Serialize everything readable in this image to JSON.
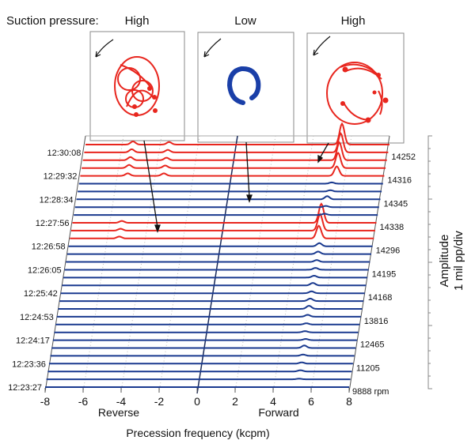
{
  "header": {
    "label": "Suction pressure:",
    "conditions": [
      "High",
      "Low",
      "High"
    ]
  },
  "colors": {
    "high": "#e8261e",
    "low": "#1a3a8f"
  },
  "chart_data": {
    "type": "waterfall",
    "xlabel": "Precession frequency (kcpm)",
    "x_region_labels": [
      "Reverse",
      "Forward"
    ],
    "ylabel": [
      "Amplitude",
      "1 mil pp/div"
    ],
    "xlim": [
      -8,
      8
    ],
    "xticks": [
      -8,
      -6,
      -4,
      -2,
      0,
      2,
      4,
      6,
      8
    ],
    "rpm_unit": "rpm",
    "rows": [
      {
        "time": "",
        "rpm": "",
        "c": "high",
        "peaks": [
          [
            -5.5,
            0.05
          ],
          [
            -3.6,
            0.04
          ],
          [
            5.5,
            0.33
          ]
        ]
      },
      {
        "time": "12:30:08",
        "rpm": "14252",
        "c": "high",
        "peaks": [
          [
            -5.5,
            0.05
          ],
          [
            -3.6,
            0.04
          ],
          [
            5.5,
            0.3
          ]
        ]
      },
      {
        "time": "",
        "rpm": "",
        "c": "high",
        "peaks": [
          [
            -5.5,
            0.05
          ],
          [
            -3.6,
            0.04
          ],
          [
            5.5,
            0.28
          ]
        ]
      },
      {
        "time": "",
        "rpm": "",
        "c": "high",
        "peaks": [
          [
            -5.5,
            0.05
          ],
          [
            -3.6,
            0.04
          ],
          [
            5.5,
            0.24
          ]
        ]
      },
      {
        "time": "12:29:32",
        "rpm": "14316",
        "c": "high",
        "peaks": [
          [
            -5.5,
            0.04
          ],
          [
            -3.6,
            0.04
          ],
          [
            5.5,
            0.15
          ]
        ]
      },
      {
        "time": "",
        "rpm": "",
        "c": "low",
        "peaks": [
          [
            5.3,
            0.02
          ]
        ]
      },
      {
        "time": "",
        "rpm": "",
        "c": "low",
        "peaks": [
          [
            5.3,
            0.02
          ]
        ]
      },
      {
        "time": "12:28:34",
        "rpm": "14345",
        "c": "low",
        "peaks": [
          [
            5.2,
            0.05
          ]
        ]
      },
      {
        "time": "",
        "rpm": "",
        "c": "low",
        "peaks": [
          [
            5.2,
            0.02
          ]
        ]
      },
      {
        "time": "",
        "rpm": "",
        "c": "low",
        "peaks": [
          [
            5.2,
            0.02
          ]
        ]
      },
      {
        "time": "12:27:56",
        "rpm": "14338",
        "c": "high",
        "peaks": [
          [
            -5.4,
            0.03
          ],
          [
            5.1,
            0.3
          ]
        ]
      },
      {
        "time": "",
        "rpm": "",
        "c": "high",
        "peaks": [
          [
            -5.4,
            0.03
          ],
          [
            5.1,
            0.26
          ]
        ]
      },
      {
        "time": "",
        "rpm": "",
        "c": "high",
        "peaks": [
          [
            -5.4,
            0.03
          ],
          [
            5.1,
            0.2
          ]
        ]
      },
      {
        "time": "12:26:58",
        "rpm": "14296",
        "c": "low",
        "peaks": [
          [
            5.2,
            0.05
          ]
        ]
      },
      {
        "time": "",
        "rpm": "",
        "c": "low",
        "peaks": [
          [
            5.2,
            0.04
          ]
        ]
      },
      {
        "time": "",
        "rpm": "",
        "c": "low",
        "peaks": [
          [
            5.2,
            0.03
          ]
        ]
      },
      {
        "time": "12:26:05",
        "rpm": "14195",
        "c": "low",
        "peaks": [
          [
            5.2,
            0.03
          ]
        ]
      },
      {
        "time": "",
        "rpm": "",
        "c": "low",
        "peaks": [
          [
            5.2,
            0.03
          ]
        ]
      },
      {
        "time": "",
        "rpm": "",
        "c": "low",
        "peaks": [
          [
            5.2,
            0.04
          ]
        ]
      },
      {
        "time": "12:25:42",
        "rpm": "14168",
        "c": "low",
        "peaks": [
          [
            5.2,
            0.03
          ]
        ]
      },
      {
        "time": "",
        "rpm": "",
        "c": "low",
        "peaks": [
          [
            5.2,
            0.04
          ]
        ]
      },
      {
        "time": "",
        "rpm": "",
        "c": "low",
        "peaks": [
          [
            5.2,
            0.05
          ]
        ]
      },
      {
        "time": "12:24:53",
        "rpm": "13816",
        "c": "low",
        "peaks": [
          [
            5.2,
            0.03
          ]
        ]
      },
      {
        "time": "",
        "rpm": "",
        "c": "low",
        "peaks": [
          [
            5.2,
            0.02
          ]
        ]
      },
      {
        "time": "",
        "rpm": "",
        "c": "low",
        "peaks": [
          [
            5.2,
            0.02
          ]
        ]
      },
      {
        "time": "12:24:17",
        "rpm": "12465",
        "c": "low",
        "peaks": [
          [
            5.3,
            0.02
          ]
        ]
      },
      {
        "time": "",
        "rpm": "",
        "c": "low",
        "peaks": [
          [
            5.3,
            0.04
          ]
        ]
      },
      {
        "time": "",
        "rpm": "",
        "c": "low",
        "peaks": [
          [
            5.3,
            0.02
          ]
        ]
      },
      {
        "time": "12:23:36",
        "rpm": "11205",
        "c": "low",
        "peaks": [
          [
            5.3,
            0.02
          ]
        ]
      },
      {
        "time": "",
        "rpm": "",
        "c": "low",
        "peaks": [
          [
            5.3,
            0.02
          ]
        ]
      },
      {
        "time": "",
        "rpm": "",
        "c": "low",
        "peaks": [
          [
            5.3,
            0.01
          ]
        ]
      },
      {
        "time": "12:23:27",
        "rpm": "9888",
        "c": "low",
        "peaks": []
      }
    ]
  }
}
